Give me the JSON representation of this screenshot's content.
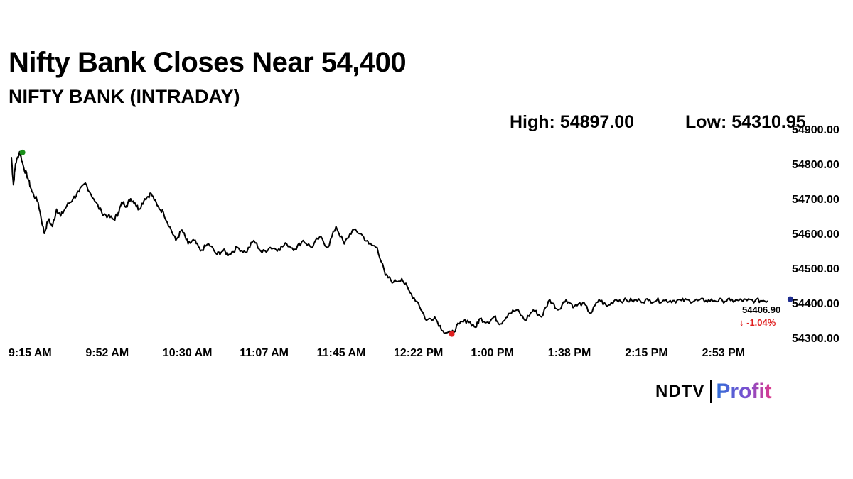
{
  "header": {
    "title": "Nifty Bank Closes Near 54,400",
    "subtitle": "NIFTY BANK (INTRADAY)",
    "high_label": "High: 54897.00",
    "low_label": "Low: 54310.95"
  },
  "brand": {
    "left": "NDTV",
    "right": "Profit"
  },
  "colors": {
    "line": "#000000",
    "open_marker": "#1a8f1a",
    "low_marker": "#e02020",
    "close_marker": "#1f2d8f",
    "change_text": "#e02020"
  },
  "chart_data": {
    "type": "line",
    "x_tick_labels": [
      "9:15 AM",
      "9:52 AM",
      "10:30 AM",
      "11:07 AM",
      "11:45 AM",
      "12:22 PM",
      "1:00 PM",
      "1:38 PM",
      "2:15 PM",
      "2:53 PM"
    ],
    "y_tick_labels": [
      "54900.00",
      "54800.00",
      "54700.00",
      "54600.00",
      "54500.00",
      "54400.00",
      "54300.00"
    ],
    "ylim": [
      54300,
      54900
    ],
    "xlim_minutes": [
      0,
      375
    ],
    "grid": false,
    "close_value": "54406.90",
    "change_text": "↓ -1.04%",
    "series": [
      {
        "x_minutes": [
          0,
          1,
          2,
          4,
          6,
          8,
          10,
          13,
          16,
          18,
          20,
          22,
          24,
          27,
          30,
          33,
          36,
          40,
          44,
          47,
          50,
          52,
          54,
          56,
          58,
          60,
          62,
          65,
          68,
          71,
          74,
          77,
          80,
          83,
          86,
          89,
          92,
          96,
          100,
          103,
          106,
          110,
          114,
          118,
          122,
          126,
          130,
          134,
          138,
          142,
          146,
          150,
          154,
          158,
          162,
          166,
          170,
          174,
          178,
          182,
          186,
          190,
          194,
          198,
          202,
          206,
          210,
          214,
          218,
          222,
          226,
          228,
          232,
          235,
          238,
          242,
          246,
          250,
          254,
          258,
          262,
          266,
          270,
          274,
          278,
          282,
          286,
          290,
          294,
          298,
          302,
          306,
          310,
          314,
          318,
          322,
          326,
          330,
          334,
          338,
          342,
          346,
          350,
          354,
          358,
          362,
          366,
          370,
          375
        ],
        "values": [
          54820,
          54740,
          54800,
          54835,
          54790,
          54760,
          54720,
          54690,
          54600,
          54640,
          54620,
          54670,
          54650,
          54680,
          54700,
          54720,
          54745,
          54700,
          54660,
          54650,
          54640,
          54660,
          54690,
          54680,
          54700,
          54690,
          54670,
          54700,
          54715,
          54680,
          54660,
          54620,
          54580,
          54610,
          54570,
          54580,
          54550,
          54570,
          54540,
          54550,
          54540,
          54560,
          54545,
          54580,
          54545,
          54560,
          54555,
          54570,
          54555,
          54580,
          54560,
          54590,
          54560,
          54620,
          54570,
          54610,
          54600,
          54570,
          54560,
          54480,
          54460,
          54470,
          54430,
          54400,
          54350,
          54360,
          54320,
          54311,
          54340,
          54350,
          54330,
          54355,
          54345,
          54360,
          54340,
          54370,
          54380,
          54350,
          54380,
          54360,
          54410,
          54380,
          54410,
          54390,
          54400,
          54370,
          54410,
          54390,
          54410,
          54407,
          54407,
          54407,
          54407,
          54407,
          54407,
          54407,
          54407,
          54407,
          54407,
          54407,
          54407,
          54407,
          54407,
          54407,
          54407,
          54407,
          54407,
          54407,
          54407
        ]
      }
    ]
  }
}
